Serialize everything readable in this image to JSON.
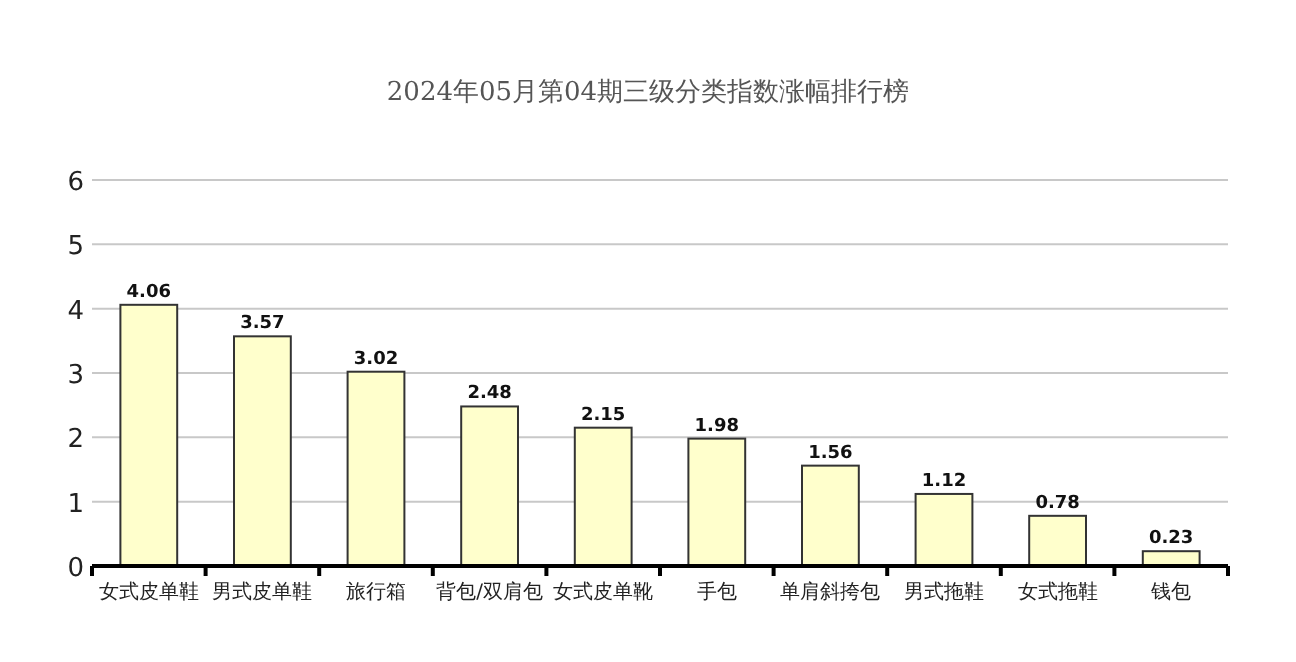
{
  "chart_data": {
    "type": "bar",
    "title": "2024年05月第04期三级分类指数涨幅排行榜",
    "categories": [
      "女式皮单鞋",
      "男式皮单鞋",
      "旅行箱",
      "背包/双肩包",
      "女式皮单靴",
      "手包",
      "单肩斜挎包",
      "男式拖鞋",
      "女式拖鞋",
      "钱包"
    ],
    "values": [
      4.06,
      3.57,
      3.02,
      2.48,
      2.15,
      1.98,
      1.56,
      1.12,
      0.78,
      0.23
    ],
    "color": "#ffffcc",
    "ylim": [
      0,
      6
    ],
    "yticks": [
      0,
      1,
      2,
      3,
      4,
      5,
      6
    ],
    "grid": "y",
    "data_labels": true
  }
}
